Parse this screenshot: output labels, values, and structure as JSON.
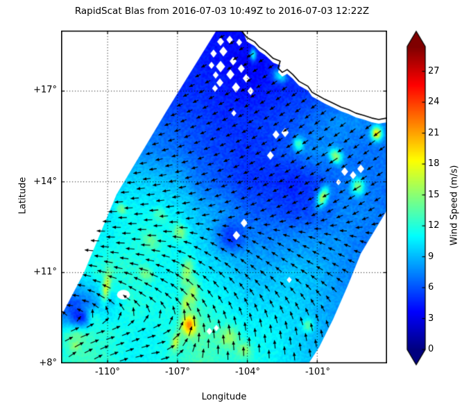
{
  "figure_title": "RapidScat Blas from 2016-07-03 10:49Z to 2016-07-03 12:22Z",
  "chart_data": {
    "type": "heatmap",
    "title": "RapidScat Blas from 2016-07-03 10:49Z to 2016-07-03 12:22Z",
    "xlabel": "Longitude",
    "ylabel": "Latitude",
    "xlim": [
      -112,
      -98
    ],
    "ylim": [
      8,
      19
    ],
    "grid": "dotted",
    "xticks": {
      "values": [
        -110,
        -107,
        -104,
        -101
      ],
      "labels": [
        "-110°",
        "-107°",
        "-104°",
        "-101°"
      ]
    },
    "yticks": {
      "values": [
        17,
        14,
        11,
        8
      ],
      "labels": [
        "+17°",
        "+14°",
        "+11°",
        "+8°"
      ]
    },
    "colorbar": {
      "label": "Wind Speed (m/s)",
      "ticks": [
        27,
        24,
        21,
        18,
        15,
        12,
        9,
        6,
        3,
        0
      ],
      "vmin": 0,
      "vmax": 29.4,
      "colormap": "jet",
      "extend": "both"
    },
    "wind_field": {
      "units": "m/s",
      "lons": [
        -112,
        -111,
        -110,
        -109,
        -108,
        -107,
        -106,
        -105,
        -104,
        -103,
        -102,
        -101,
        -100,
        -99,
        -98
      ],
      "lats": [
        19,
        18,
        17,
        16,
        15,
        14,
        13,
        12,
        11,
        10,
        9,
        8
      ],
      "speed_ms": [
        [
          5,
          5,
          5,
          5,
          5,
          5,
          4.5,
          4,
          4,
          4,
          4,
          4,
          4,
          4,
          4
        ],
        [
          5,
          5,
          5,
          5,
          5,
          5,
          4.5,
          4,
          3.5,
          4,
          4.5,
          4.5,
          4.5,
          5,
          5
        ],
        [
          6,
          6,
          6,
          6,
          5.5,
          5,
          5,
          4.5,
          4,
          4.5,
          5,
          5.5,
          6,
          6,
          6
        ],
        [
          7,
          7,
          7,
          7,
          6.5,
          6,
          5.5,
          5,
          5,
          5.5,
          6,
          7,
          8,
          7.5,
          7.5
        ],
        [
          8,
          8,
          8,
          8,
          7.5,
          7,
          6,
          5.5,
          5,
          5.5,
          6.5,
          8,
          7,
          7,
          7
        ],
        [
          9,
          9,
          9.5,
          10,
          9.5,
          9,
          7,
          6,
          5,
          5,
          4.5,
          5.5,
          7,
          7,
          7
        ],
        [
          10,
          10,
          10.5,
          11,
          11,
          10.5,
          9,
          8,
          6.5,
          6,
          5.5,
          6,
          7.5,
          7.5,
          7
        ],
        [
          10,
          11,
          11,
          11.5,
          12,
          11,
          10,
          9,
          8,
          7.5,
          8,
          8,
          8,
          7,
          7
        ],
        [
          10,
          11,
          12.5,
          12,
          11,
          11,
          10.5,
          10,
          9,
          9,
          9.5,
          9,
          8,
          7,
          7
        ],
        [
          5.5,
          7,
          9.5,
          12,
          11.5,
          11.5,
          12,
          11,
          10,
          10,
          10,
          9,
          8,
          7,
          7
        ],
        [
          11,
          12.5,
          12,
          11,
          11,
          12,
          13.5,
          12,
          11,
          11,
          10,
          9,
          8,
          7,
          7
        ],
        [
          12,
          13,
          12,
          11,
          11,
          12,
          13,
          12,
          12,
          11,
          10,
          9,
          8,
          7,
          7
        ]
      ],
      "direction_toward_deg": [
        [
          208,
          208,
          208,
          208,
          208,
          208,
          210,
          210,
          212,
          212,
          213,
          214,
          215,
          215,
          215
        ],
        [
          205,
          205,
          205,
          205,
          206,
          206,
          208,
          210,
          212,
          214,
          215,
          216,
          216,
          217,
          218
        ],
        [
          200,
          201,
          202,
          203,
          204,
          205,
          207,
          209,
          211,
          213,
          215,
          216,
          217,
          218,
          218
        ],
        [
          193,
          194,
          195,
          196,
          198,
          200,
          203,
          206,
          209,
          212,
          214,
          216,
          217,
          218,
          218
        ],
        [
          188,
          188,
          189,
          190,
          192,
          195,
          199,
          203,
          207,
          210,
          212,
          213,
          214,
          215,
          215
        ],
        [
          183,
          183,
          184,
          185,
          187,
          190,
          194,
          199,
          203,
          206,
          208,
          210,
          211,
          212,
          212
        ],
        [
          180,
          180,
          181,
          182,
          184,
          186,
          190,
          196,
          200,
          203,
          205,
          206,
          207,
          208,
          208
        ],
        [
          176,
          176,
          177,
          178,
          178,
          172,
          160,
          152,
          150,
          152,
          155,
          158,
          160,
          162,
          162
        ],
        [
          170,
          169,
          168,
          166,
          162,
          152,
          143,
          138,
          137,
          140,
          144,
          148,
          152,
          155,
          155
        ],
        [
          185,
          170,
          143,
          141,
          139,
          134,
          126,
          120,
          118,
          120,
          122,
          124,
          126,
          128,
          130
        ],
        [
          25,
          20,
          15,
          25,
          15,
          55,
          95,
          100,
          96,
          98,
          100,
          102,
          104,
          106,
          108
        ],
        [
          40,
          32,
          24,
          14,
          5,
          40,
          78,
          90,
          90,
          92,
          95,
          97,
          100,
          102,
          104
        ]
      ]
    },
    "high_wind_features": [
      {
        "lon": -110.05,
        "lat": 10.55,
        "peak_ms": 17,
        "rx_deg": 0.16,
        "ry_deg": 0.5,
        "rot_deg": -12
      },
      {
        "lon": -110.8,
        "lat": 9.45,
        "peak_ms": 15.5,
        "rx_deg": 0.38,
        "ry_deg": 0.28,
        "rot_deg": 0
      },
      {
        "lon": -111.4,
        "lat": 8.6,
        "peak_ms": 16,
        "rx_deg": 0.2,
        "ry_deg": 0.18,
        "rot_deg": 0
      },
      {
        "lon": -111.3,
        "lat": 8.9,
        "peak_ms": 14,
        "rx_deg": 0.5,
        "ry_deg": 0.28,
        "rot_deg": 20
      },
      {
        "lon": -106.5,
        "lat": 9.27,
        "peak_ms": 22,
        "rx_deg": 0.3,
        "ry_deg": 0.33,
        "rot_deg": 0
      },
      {
        "lon": -106.65,
        "lat": 9.98,
        "peak_ms": 16.5,
        "rx_deg": 0.16,
        "ry_deg": 0.3,
        "rot_deg": -15
      },
      {
        "lon": -107.07,
        "lat": 8.72,
        "peak_ms": 16.5,
        "rx_deg": 0.18,
        "ry_deg": 0.3,
        "rot_deg": -20
      },
      {
        "lon": -98.45,
        "lat": 15.6,
        "peak_ms": 19.5,
        "rx_deg": 0.22,
        "ry_deg": 0.22,
        "rot_deg": 0
      },
      {
        "lon": -100.2,
        "lat": 14.85,
        "peak_ms": 15.5,
        "rx_deg": 0.28,
        "ry_deg": 0.22,
        "rot_deg": -30
      },
      {
        "lon": -100.75,
        "lat": 13.5,
        "peak_ms": 16,
        "rx_deg": 0.2,
        "ry_deg": 0.35,
        "rot_deg": -30
      },
      {
        "lon": -99.25,
        "lat": 13.85,
        "peak_ms": 14.5,
        "rx_deg": 0.28,
        "ry_deg": 0.28,
        "rot_deg": 0
      },
      {
        "lon": -101.8,
        "lat": 15.25,
        "peak_ms": 13,
        "rx_deg": 0.22,
        "ry_deg": 0.22,
        "rot_deg": 0
      },
      {
        "lon": -104.8,
        "lat": 8.85,
        "peak_ms": 15.5,
        "rx_deg": 0.4,
        "ry_deg": 0.35,
        "rot_deg": 0
      },
      {
        "lon": -104.15,
        "lat": 8.45,
        "peak_ms": 15,
        "rx_deg": 0.3,
        "ry_deg": 0.25,
        "rot_deg": 0
      },
      {
        "lon": -101.4,
        "lat": 9.25,
        "peak_ms": 13.5,
        "rx_deg": 0.22,
        "ry_deg": 0.22,
        "rot_deg": 0
      },
      {
        "lon": -103.75,
        "lat": 18.2,
        "peak_ms": 11,
        "rx_deg": 0.14,
        "ry_deg": 0.2,
        "rot_deg": 0
      },
      {
        "lon": -102.6,
        "lat": 17.5,
        "peak_ms": 10.5,
        "rx_deg": 0.3,
        "ry_deg": 0.2,
        "rot_deg": -20
      },
      {
        "lon": -109.4,
        "lat": 13.1,
        "peak_ms": 14,
        "rx_deg": 0.22,
        "ry_deg": 0.18,
        "rot_deg": -30
      },
      {
        "lon": -108.15,
        "lat": 12.05,
        "peak_ms": 14,
        "rx_deg": 0.35,
        "ry_deg": 0.22,
        "rot_deg": -30
      },
      {
        "lon": -107.75,
        "lat": 12.9,
        "peak_ms": 13.5,
        "rx_deg": 0.28,
        "ry_deg": 0.2,
        "rot_deg": -30
      },
      {
        "lon": -106.9,
        "lat": 12.35,
        "peak_ms": 15,
        "rx_deg": 0.3,
        "ry_deg": 0.25,
        "rot_deg": -30
      },
      {
        "lon": -106.6,
        "lat": 11.0,
        "peak_ms": 15.5,
        "rx_deg": 0.25,
        "ry_deg": 0.5,
        "rot_deg": -15
      },
      {
        "lon": -106.35,
        "lat": 10.3,
        "peak_ms": 16,
        "rx_deg": 0.22,
        "ry_deg": 0.45,
        "rot_deg": -10
      },
      {
        "lon": -108.35,
        "lat": 10.95,
        "peak_ms": 14.5,
        "rx_deg": 0.3,
        "ry_deg": 0.22,
        "rot_deg": -25
      },
      {
        "lon": -111.2,
        "lat": 9.55,
        "peak_ms": 4.5,
        "rx_deg": 0.55,
        "ry_deg": 0.35,
        "rot_deg": -20
      },
      {
        "lon": -104.7,
        "lat": 12.2,
        "peak_ms": 5,
        "rx_deg": 0.6,
        "ry_deg": 0.5,
        "rot_deg": 0
      }
    ],
    "swath_polygon": [
      [
        -105.33,
        19.0
      ],
      [
        -104.2,
        19.0
      ],
      [
        -104.02,
        18.63
      ],
      [
        -103.69,
        18.49
      ],
      [
        -103.48,
        18.31
      ],
      [
        -103.24,
        18.19
      ],
      [
        -102.89,
        17.94
      ],
      [
        -102.59,
        17.85
      ],
      [
        -102.68,
        17.62
      ],
      [
        -102.5,
        17.48
      ],
      [
        -102.29,
        17.57
      ],
      [
        -102.05,
        17.41
      ],
      [
        -101.78,
        17.18
      ],
      [
        -101.4,
        17.02
      ],
      [
        -101.22,
        16.82
      ],
      [
        -100.98,
        16.72
      ],
      [
        -100.68,
        16.59
      ],
      [
        -100.35,
        16.47
      ],
      [
        -99.97,
        16.33
      ],
      [
        -99.64,
        16.24
      ],
      [
        -99.34,
        16.13
      ],
      [
        -99.01,
        16.06
      ],
      [
        -98.66,
        15.97
      ],
      [
        -98.36,
        15.92
      ],
      [
        -98.0,
        15.97
      ],
      [
        -98.0,
        13.07
      ],
      [
        -99.13,
        11.63
      ],
      [
        -99.67,
        10.6
      ],
      [
        -100.32,
        9.45
      ],
      [
        -100.92,
        8.53
      ],
      [
        -101.37,
        8.0
      ],
      [
        -112.0,
        8.0
      ],
      [
        -112.0,
        9.56
      ],
      [
        -111.02,
        10.99
      ],
      [
        -109.62,
        13.58
      ],
      [
        -107.47,
        16.34
      ]
    ],
    "coastline": [
      [
        -104.26,
        19.0
      ],
      [
        -104.02,
        18.77
      ],
      [
        -103.69,
        18.63
      ],
      [
        -103.48,
        18.45
      ],
      [
        -103.24,
        18.33
      ],
      [
        -102.89,
        18.08
      ],
      [
        -102.59,
        17.99
      ],
      [
        -102.68,
        17.76
      ],
      [
        -102.5,
        17.62
      ],
      [
        -102.29,
        17.71
      ],
      [
        -102.05,
        17.55
      ],
      [
        -101.78,
        17.32
      ],
      [
        -101.4,
        17.16
      ],
      [
        -101.22,
        16.96
      ],
      [
        -100.98,
        16.86
      ],
      [
        -100.68,
        16.73
      ],
      [
        -100.35,
        16.61
      ],
      [
        -99.97,
        16.47
      ],
      [
        -99.64,
        16.38
      ],
      [
        -99.34,
        16.27
      ],
      [
        -99.01,
        16.2
      ],
      [
        -98.66,
        16.11
      ],
      [
        -98.36,
        16.06
      ],
      [
        -98.0,
        16.11
      ]
    ],
    "missing_data_cells": [
      {
        "lon": -105.15,
        "lat": 18.63,
        "size_deg": 0.3,
        "shape": "diamond"
      },
      {
        "lon": -104.76,
        "lat": 18.7,
        "size_deg": 0.28,
        "shape": "diamond"
      },
      {
        "lon": -104.35,
        "lat": 18.61,
        "size_deg": 0.25,
        "shape": "diamond"
      },
      {
        "lon": -105.45,
        "lat": 18.24,
        "size_deg": 0.28,
        "shape": "diamond"
      },
      {
        "lon": -105.03,
        "lat": 18.31,
        "size_deg": 0.35,
        "shape": "diamond"
      },
      {
        "lon": -104.61,
        "lat": 17.99,
        "size_deg": 0.3,
        "shape": "diamond"
      },
      {
        "lon": -105.54,
        "lat": 17.85,
        "size_deg": 0.25,
        "shape": "diamond"
      },
      {
        "lon": -105.15,
        "lat": 17.81,
        "size_deg": 0.4,
        "shape": "diamond"
      },
      {
        "lon": -104.26,
        "lat": 17.74,
        "size_deg": 0.3,
        "shape": "diamond"
      },
      {
        "lon": -105.36,
        "lat": 17.53,
        "size_deg": 0.25,
        "shape": "diamond"
      },
      {
        "lon": -104.73,
        "lat": 17.55,
        "size_deg": 0.35,
        "shape": "diamond"
      },
      {
        "lon": -104.05,
        "lat": 17.42,
        "size_deg": 0.3,
        "shape": "diamond"
      },
      {
        "lon": -105.18,
        "lat": 17.28,
        "size_deg": 0.3,
        "shape": "diamond"
      },
      {
        "lon": -104.49,
        "lat": 17.12,
        "size_deg": 0.35,
        "shape": "diamond"
      },
      {
        "lon": -103.86,
        "lat": 17.0,
        "size_deg": 0.28,
        "shape": "diamond"
      },
      {
        "lon": -105.39,
        "lat": 17.09,
        "size_deg": 0.25,
        "shape": "diamond"
      },
      {
        "lon": -104.58,
        "lat": 16.27,
        "size_deg": 0.22,
        "shape": "diamond"
      },
      {
        "lon": -102.77,
        "lat": 15.56,
        "size_deg": 0.3,
        "shape": "diamond"
      },
      {
        "lon": -102.38,
        "lat": 15.63,
        "size_deg": 0.32,
        "shape": "diamond"
      },
      {
        "lon": -103.01,
        "lat": 14.87,
        "size_deg": 0.3,
        "shape": "diamond"
      },
      {
        "lon": -104.14,
        "lat": 12.64,
        "size_deg": 0.3,
        "shape": "diamond"
      },
      {
        "lon": -104.47,
        "lat": 12.23,
        "size_deg": 0.32,
        "shape": "diamond"
      },
      {
        "lon": -102.2,
        "lat": 10.76,
        "size_deg": 0.22,
        "shape": "diamond"
      },
      {
        "lon": -99.82,
        "lat": 14.34,
        "size_deg": 0.3,
        "shape": "diamond"
      },
      {
        "lon": -99.46,
        "lat": 14.22,
        "size_deg": 0.28,
        "shape": "diamond"
      },
      {
        "lon": -99.13,
        "lat": 14.43,
        "size_deg": 0.3,
        "shape": "diamond"
      },
      {
        "lon": -100.09,
        "lat": 13.99,
        "size_deg": 0.22,
        "shape": "diamond"
      },
      {
        "lon": -105.63,
        "lat": 9.06,
        "size_deg": 0.25,
        "shape": "diamond"
      },
      {
        "lon": -105.33,
        "lat": 9.17,
        "size_deg": 0.22,
        "shape": "diamond"
      },
      {
        "lon": -109.32,
        "lat": 10.27,
        "size_deg": 0.45,
        "shape": "oval"
      }
    ]
  }
}
